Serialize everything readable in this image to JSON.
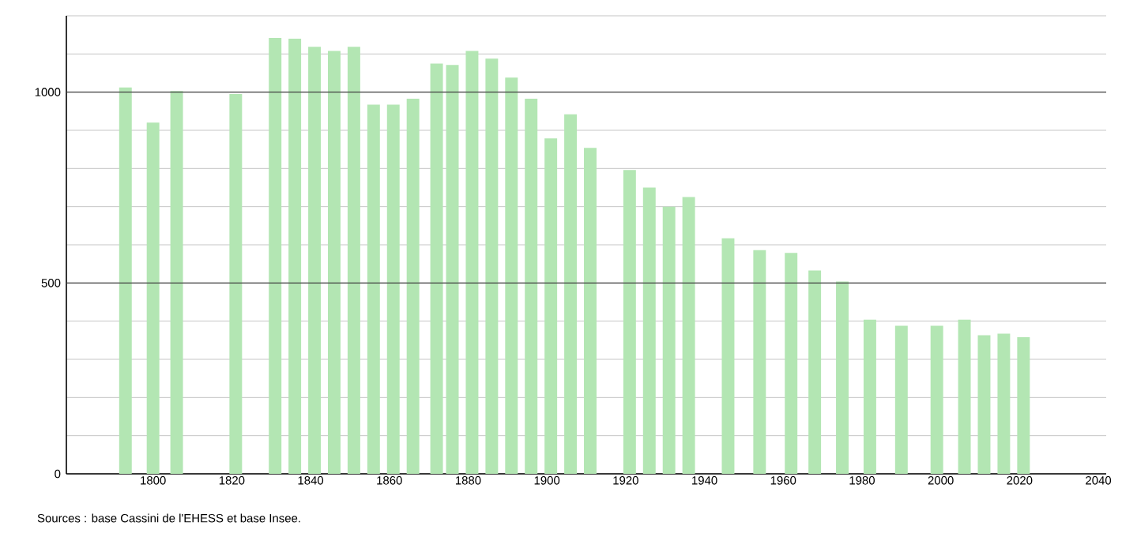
{
  "chart_data": {
    "type": "bar",
    "color": "#b3e6b3",
    "x": [
      1793,
      1800,
      1806,
      1821,
      1831,
      1836,
      1841,
      1846,
      1851,
      1856,
      1861,
      1866,
      1872,
      1876,
      1881,
      1886,
      1891,
      1896,
      1901,
      1906,
      1911,
      1921,
      1926,
      1931,
      1936,
      1946,
      1954,
      1962,
      1968,
      1975,
      1982,
      1990,
      1999,
      2006,
      2011,
      2016,
      2021
    ],
    "values": [
      1012,
      920,
      1003,
      995,
      1142,
      1140,
      1119,
      1108,
      1119,
      967,
      967,
      983,
      1075,
      1071,
      1108,
      1088,
      1038,
      983,
      879,
      942,
      854,
      796,
      750,
      700,
      725,
      617,
      586,
      579,
      533,
      504,
      404,
      388,
      388,
      404,
      363,
      367,
      358
    ],
    "xlim": [
      1778,
      2042
    ],
    "ylim": [
      0,
      1200
    ],
    "xticks": [
      1800,
      1820,
      1840,
      1860,
      1880,
      1900,
      1920,
      1940,
      1960,
      1980,
      2000,
      2020,
      2040
    ],
    "yticks": [
      0,
      {
        "value": 100,
        "label": null
      },
      {
        "value": 200,
        "label": null
      },
      {
        "value": 300,
        "label": null
      },
      {
        "value": 400,
        "label": null
      },
      500,
      {
        "value": 600,
        "label": null
      },
      {
        "value": 700,
        "label": null
      },
      {
        "value": 800,
        "label": null
      },
      {
        "value": 900,
        "label": null
      },
      1000,
      {
        "value": 1100,
        "label": null
      },
      {
        "value": 1200,
        "label": null
      }
    ],
    "grid": "y",
    "annotations": [
      "Sources : base Cassini de l'EHESS et base Insee."
    ]
  }
}
